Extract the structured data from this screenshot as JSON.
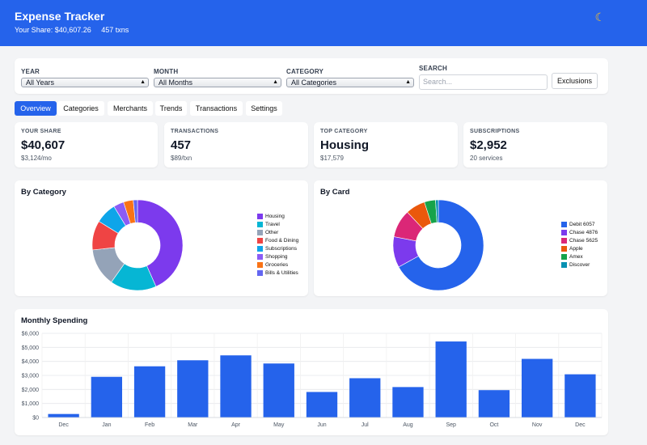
{
  "header": {
    "title": "Expense Tracker",
    "share": "Your Share: $40,607.26",
    "txns": "457 txns",
    "theme_icon": "☾"
  },
  "filters": {
    "year": {
      "label": "YEAR",
      "value": "All Years"
    },
    "month": {
      "label": "MONTH",
      "value": "All Months"
    },
    "category": {
      "label": "CATEGORY",
      "value": "All Categories"
    },
    "search": {
      "label": "SEARCH",
      "placeholder": "Search..."
    },
    "exclusions_label": "Exclusions"
  },
  "tabs": [
    "Overview",
    "Categories",
    "Merchants",
    "Trends",
    "Transactions",
    "Settings"
  ],
  "stats": [
    {
      "label": "YOUR SHARE",
      "value": "$40,607",
      "sub": "$3,124/mo"
    },
    {
      "label": "TRANSACTIONS",
      "value": "457",
      "sub": "$89/txn"
    },
    {
      "label": "TOP CATEGORY",
      "value": "Housing",
      "sub": "$17,579"
    },
    {
      "label": "SUBSCRIPTIONS",
      "value": "$2,952",
      "sub": "20 services"
    }
  ],
  "by_category": {
    "title": "By Category",
    "legend": [
      "Housing",
      "Travel",
      "Other",
      "Food & Dining",
      "Subscriptions",
      "Shopping",
      "Groceries",
      "Bills & Utilities"
    ]
  },
  "by_card": {
    "title": "By Card",
    "legend": [
      "Debit 6057",
      "Chase 4876",
      "Chase 5625",
      "Apple",
      "Amex",
      "Discover"
    ]
  },
  "monthly": {
    "title": "Monthly Spending"
  },
  "colors": {
    "accent": "#2563eb",
    "category": [
      "#7c3aed",
      "#06b6d4",
      "#94a3b8",
      "#ef4444",
      "#0ea5e9",
      "#8b5cf6",
      "#f97316",
      "#6366f1"
    ],
    "card": [
      "#2563eb",
      "#7c3aed",
      "#db2777",
      "#ea580c",
      "#16a34a",
      "#0891b2"
    ]
  },
  "chart_data": [
    {
      "type": "pie",
      "title": "By Category",
      "labels": [
        "Housing",
        "Travel",
        "Other",
        "Food & Dining",
        "Subscriptions",
        "Shopping",
        "Groceries",
        "Bills & Utilities"
      ],
      "values": [
        43.3,
        16.5,
        13.5,
        10.5,
        7.5,
        3.7,
        3.5,
        1.5
      ]
    },
    {
      "type": "pie",
      "title": "By Card",
      "labels": [
        "Debit 6057",
        "Chase 4876",
        "Chase 5625",
        "Apple",
        "Amex",
        "Discover"
      ],
      "values": [
        67,
        11,
        10,
        7,
        4,
        1
      ]
    },
    {
      "type": "bar",
      "title": "Monthly Spending",
      "categories": [
        "Dec",
        "Jan",
        "Feb",
        "Mar",
        "Apr",
        "May",
        "Jun",
        "Jul",
        "Aug",
        "Sep",
        "Oct",
        "Nov",
        "Dec"
      ],
      "values": [
        250,
        2900,
        3650,
        4080,
        4430,
        3850,
        1820,
        2800,
        2170,
        5420,
        1950,
        4180,
        3080
      ],
      "ylim": [
        0,
        6000
      ],
      "yticks": [
        "$0",
        "$1,000",
        "$2,000",
        "$3,000",
        "$4,000",
        "$5,000",
        "$6,000"
      ],
      "grid": true
    }
  ]
}
